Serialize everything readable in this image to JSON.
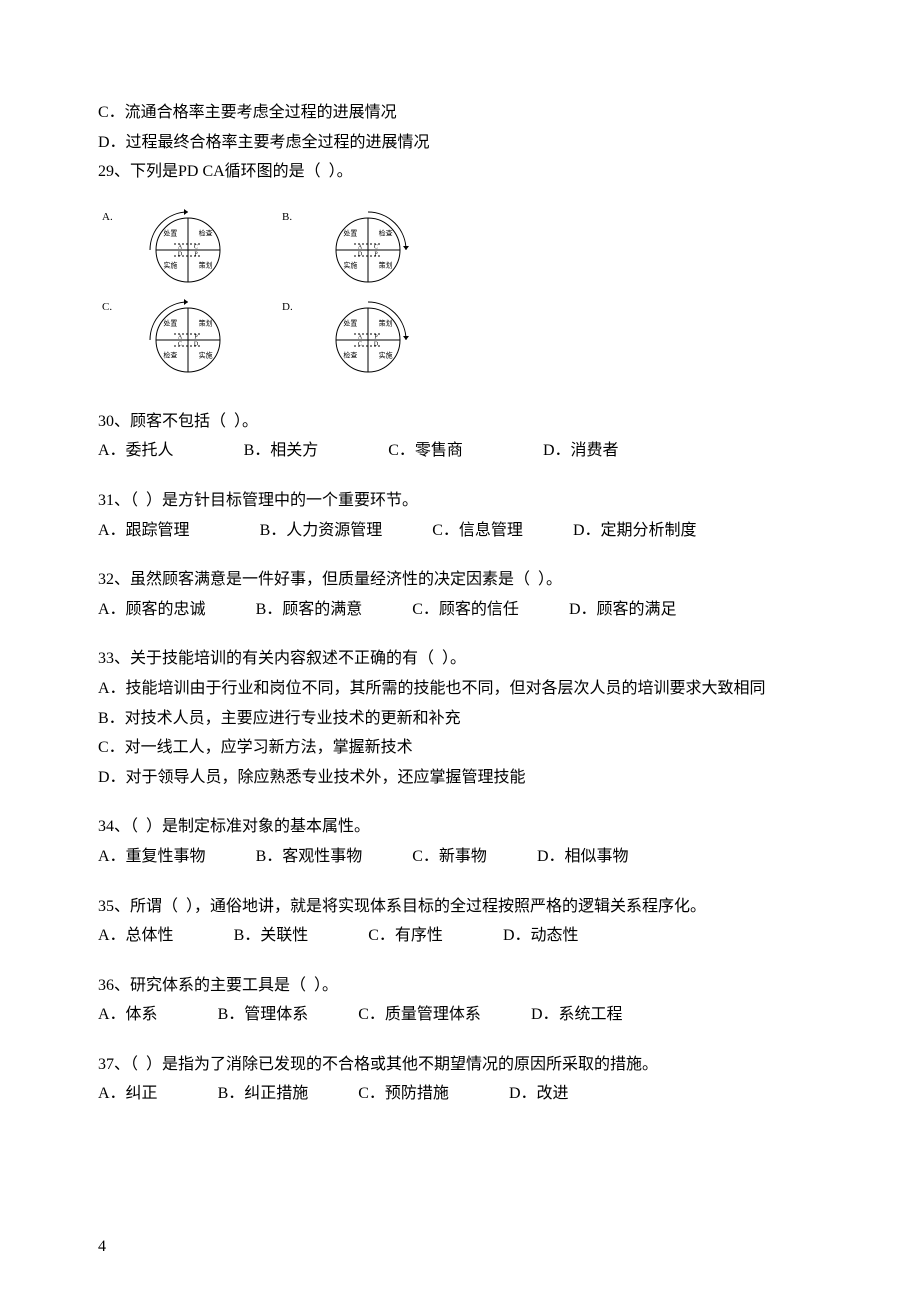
{
  "colors": {
    "text": "#000000",
    "bg": "#ffffff",
    "stroke": "#000000"
  },
  "typography": {
    "body_fontsize": 16,
    "diagram_label_fontsize": 7,
    "diagram_outer_label_fontsize": 11
  },
  "pdca_diagram": {
    "type": "infographic",
    "circle_r": 32,
    "stroke_width": 1,
    "variants": [
      {
        "label": "A.",
        "tl": "处置",
        "tr": "检查",
        "bl": "实施",
        "br": "策划",
        "ml_t": "A",
        "mr_t": "C",
        "ml_b": "D",
        "mr_b": "P",
        "arrow": "ccw-top"
      },
      {
        "label": "B.",
        "tl": "处置",
        "tr": "检查",
        "bl": "实施",
        "br": "策划",
        "ml_t": "A",
        "mr_t": "C",
        "ml_b": "D",
        "mr_b": "P",
        "arrow": "cw-top"
      },
      {
        "label": "C.",
        "tl": "处置",
        "tr": "策划",
        "bl": "检查",
        "br": "实施",
        "ml_t": "A",
        "mr_t": "P",
        "ml_b": "C",
        "mr_b": "D",
        "arrow": "ccw-top"
      },
      {
        "label": "D.",
        "tl": "处置",
        "tr": "策划",
        "bl": "检查",
        "br": "实施",
        "ml_t": "A",
        "mr_t": "P",
        "ml_b": "C",
        "mr_b": "D",
        "arrow": "cw-top"
      }
    ]
  },
  "pre": {
    "c": "C．流通合格率主要考虑全过程的进展情况",
    "d": "D．过程最终合格率主要考虑全过程的进展情况"
  },
  "q29": {
    "stem": "29、下列是PD CA循环图的是（  ）。"
  },
  "q30": {
    "stem": "30、顾客不包括（  ）。",
    "opts": [
      "A．委托人",
      "B．相关方",
      "C．零售商",
      "D．消费者"
    ],
    "gaps": [
      0,
      70,
      70,
      80
    ]
  },
  "q31": {
    "stem": "31、（  ）是方针目标管理中的一个重要环节。",
    "opts": [
      "A．跟踪管理",
      "B．人力资源管理",
      "C．信息管理",
      "D．定期分析制度"
    ],
    "gaps": [
      0,
      70,
      50,
      50
    ]
  },
  "q32": {
    "stem": "32、虽然顾客满意是一件好事，但质量经济性的决定因素是（  ）。",
    "opts": [
      "A．顾客的忠诚",
      "B．顾客的满意",
      "C．顾客的信任",
      "D．顾客的满足"
    ],
    "gaps": [
      0,
      50,
      50,
      50
    ]
  },
  "q33": {
    "stem": "33、关于技能培训的有关内容叙述不正确的有（  ）。",
    "a": "A．技能培训由于行业和岗位不同，其所需的技能也不同，但对各层次人员的培训要求大致相同",
    "b": "B．对技术人员，主要应进行专业技术的更新和补充",
    "c": "C．对一线工人，应学习新方法，掌握新技术",
    "d": "D．对于领导人员，除应熟悉专业技术外，还应掌握管理技能"
  },
  "q34": {
    "stem": "34、（  ）是制定标准对象的基本属性。",
    "opts": [
      "A．重复性事物",
      "B．客观性事物",
      "C．新事物",
      "D．相似事物"
    ],
    "gaps": [
      0,
      50,
      50,
      50
    ]
  },
  "q35": {
    "stem": "35、所谓（  ），通俗地讲，就是将实现体系目标的全过程按照严格的逻辑关系程序化。",
    "opts": [
      "A．总体性",
      "B．关联性",
      "C．有序性",
      "D．动态性"
    ],
    "gaps": [
      0,
      60,
      60,
      60
    ]
  },
  "q36": {
    "stem": "36、研究体系的主要工具是（  ）。",
    "opts": [
      "A．体系",
      "B．管理体系",
      "C．质量管理体系",
      "D．系统工程"
    ],
    "gaps": [
      0,
      60,
      50,
      50
    ]
  },
  "q37": {
    "stem": "37、（  ）是指为了消除已发现的不合格或其他不期望情况的原因所采取的措施。",
    "opts": [
      "A．纠正",
      "B．纠正措施",
      "C．预防措施",
      "D．改进"
    ],
    "gaps": [
      0,
      60,
      50,
      60
    ]
  },
  "page_number": "4"
}
